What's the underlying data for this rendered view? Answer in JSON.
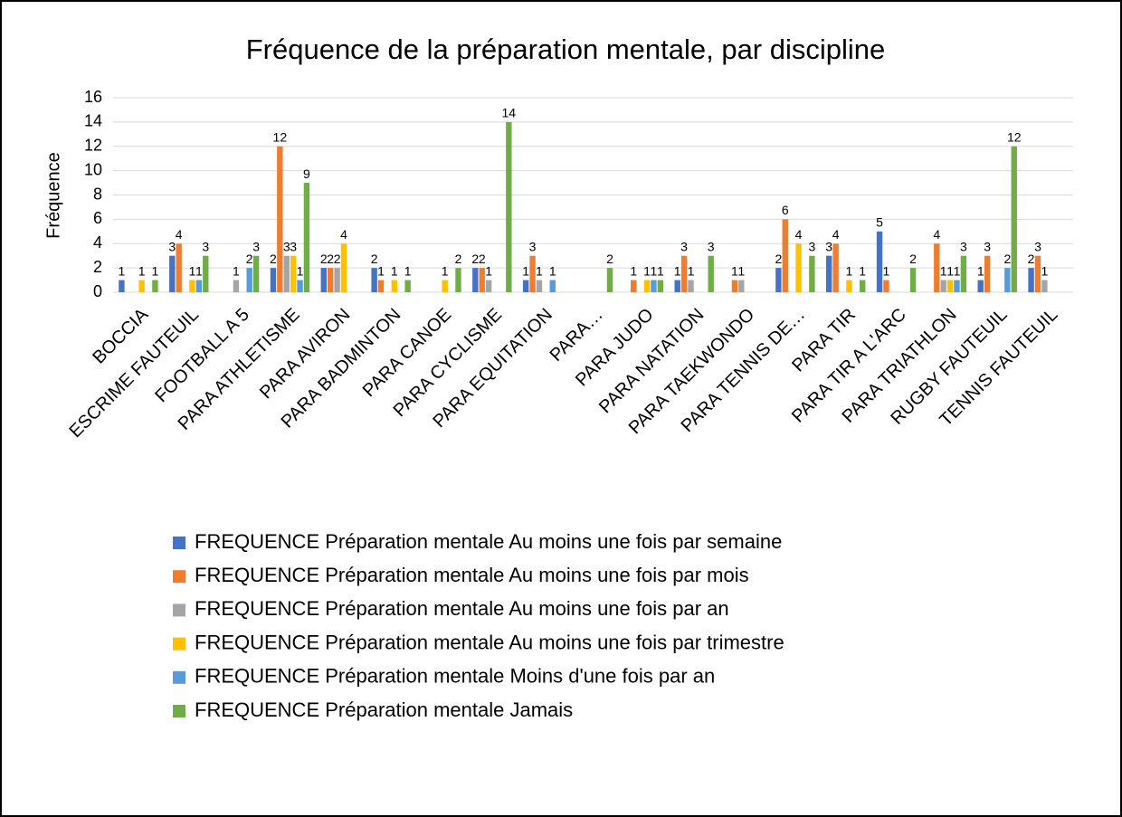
{
  "chart_data": {
    "type": "bar",
    "title": "Fréquence de la préparation mentale, par discipline",
    "y_label": "Fréquence",
    "categories": [
      "BOCCIA",
      "ESCRIME FAUTEUIL",
      "FOOTBALL A 5",
      "PARA ATHLETISME",
      "PARA AVIRON",
      "PARA BADMINTON",
      "PARA CANOE",
      "PARA CYCLISME",
      "PARA EQUITATION",
      "PARA…",
      "PARA JUDO",
      "PARA NATATION",
      "PARA TAEKWONDO",
      "PARA TENNIS DE…",
      "PARA TIR",
      "PARA TIR A L'ARC",
      "PARA TRIATHLON",
      "RUGBY FAUTEUIL",
      "TENNIS FAUTEUIL"
    ],
    "series": [
      {
        "name": "FREQUENCE Préparation mentale Au moins une fois par semaine",
        "color": "#4472c4",
        "values": [
          1,
          3,
          null,
          2,
          2,
          2,
          null,
          2,
          1,
          null,
          null,
          1,
          null,
          2,
          3,
          5,
          null,
          1,
          2
        ]
      },
      {
        "name": "FREQUENCE Préparation mentale Au moins une fois par mois",
        "color": "#ed7d31",
        "values": [
          null,
          4,
          null,
          12,
          2,
          1,
          null,
          2,
          3,
          null,
          1,
          3,
          1,
          6,
          4,
          1,
          4,
          3,
          3
        ]
      },
      {
        "name": "FREQUENCE Préparation mentale Au moins une fois par an",
        "color": "#a5a5a5",
        "values": [
          null,
          null,
          1,
          3,
          2,
          null,
          null,
          1,
          1,
          null,
          null,
          1,
          1,
          null,
          null,
          null,
          1,
          null,
          1
        ]
      },
      {
        "name": "FREQUENCE Préparation mentale Au moins une fois par trimestre",
        "color": "#ffc000",
        "values": [
          1,
          1,
          null,
          3,
          4,
          1,
          1,
          null,
          null,
          null,
          1,
          null,
          null,
          4,
          1,
          null,
          1,
          null,
          null
        ]
      },
      {
        "name": "FREQUENCE Préparation mentale Moins d'une fois par an",
        "color": "#5b9bd5",
        "values": [
          null,
          1,
          2,
          1,
          null,
          null,
          null,
          null,
          1,
          null,
          1,
          null,
          null,
          null,
          null,
          null,
          1,
          2,
          null
        ]
      },
      {
        "name": "FREQUENCE Préparation mentale Jamais",
        "color": "#70ad47",
        "values": [
          1,
          3,
          3,
          9,
          null,
          1,
          2,
          14,
          null,
          2,
          1,
          3,
          null,
          3,
          1,
          2,
          3,
          12,
          null
        ]
      }
    ],
    "ylim": [
      0,
      16
    ],
    "yticks": [
      0,
      2,
      4,
      6,
      8,
      10,
      12,
      14,
      16
    ],
    "grid": true,
    "legend": "bottom"
  }
}
